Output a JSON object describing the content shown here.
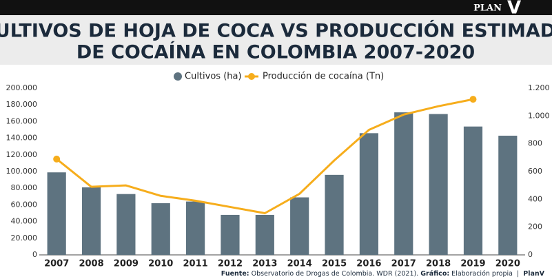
{
  "brand": {
    "name": "PLAN",
    "mark": "V"
  },
  "chart_data": {
    "type": "bar-line",
    "title": [
      "CULTIVOS DE HOJA DE COCA VS PRODUCCIÓN ESTIMADA",
      "DE COCAÍNA EN COLOMBIA 2007-2020"
    ],
    "categories": [
      "2007",
      "2008",
      "2009",
      "2010",
      "2011",
      "2012",
      "2013",
      "2014",
      "2015",
      "2016",
      "2017",
      "2018",
      "2019",
      "2020"
    ],
    "series": [
      {
        "name": "Cultivos (ha)",
        "type": "bar",
        "color": "#5e7380",
        "values": [
          99000,
          81000,
          73000,
          62000,
          64000,
          48000,
          48000,
          69000,
          96000,
          146000,
          171000,
          169000,
          154000,
          143000
        ]
      },
      {
        "name": "Producción de cocaína (Tn)",
        "type": "line",
        "axis": "y2",
        "color": "#f6ad1c",
        "values": [
          690,
          490,
          500,
          425,
          390,
          345,
          300,
          440,
          680,
          900,
          1010,
          1070,
          1120,
          null
        ]
      }
    ],
    "ylim": [
      0,
      200000
    ],
    "yticks": [
      0,
      {
        "value": 20000,
        "label": "20.000"
      },
      {
        "value": 40000,
        "label": "40.000"
      },
      {
        "value": 60000,
        "label": "60.000"
      },
      {
        "value": 80000,
        "label": "80.000"
      },
      {
        "value": 100000,
        "label": "100.000"
      },
      {
        "value": 120000,
        "label": "120.000"
      },
      {
        "value": 140000,
        "label": "140.000"
      },
      {
        "value": 160000,
        "label": "160.000"
      },
      {
        "value": 180000,
        "label": "180.000"
      },
      {
        "value": 200000,
        "label": "200.000"
      }
    ],
    "y2lim": [
      0,
      1200
    ],
    "y2ticks": [
      0,
      200,
      400,
      600,
      800,
      {
        "value": 1000,
        "label": "1.000"
      },
      {
        "value": 1200,
        "label": "1.200"
      }
    ],
    "legend": "top",
    "source": [
      {
        "text": "Fuente:",
        "bold": true
      },
      {
        "text": " Observatorio de Drogas de Colombia. WDR (2021). ",
        "bold": false
      },
      {
        "text": "Gráfico:",
        "bold": true
      },
      {
        "text": " Elaboración propia  |  ",
        "bold": false
      },
      {
        "text": "PlanV",
        "bold": true
      }
    ]
  }
}
